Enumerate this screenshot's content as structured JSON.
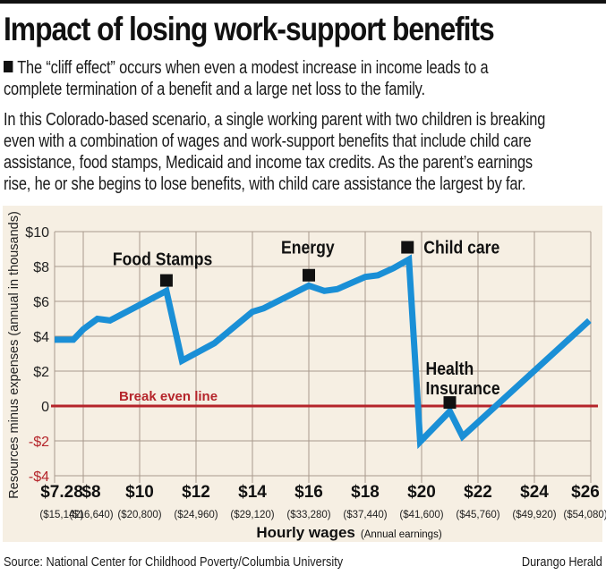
{
  "header": {
    "title": "Impact of losing work-support benefits",
    "intro": "The “cliff effect” occurs when even a modest increase in income leads to a",
    "intro2": "complete termination of a benefit and a large net loss to the family.",
    "body_lines": [
      "In this Colorado-based scenario, a single working parent with two children is breaking",
      "even with a combination of wages and work-support benefits that include child care",
      "assistance, food stamps, Medicaid and income tax credits. As the parent’s earnings",
      "rise, he or  she begins to lose benefits, with child care assistance the largest by far."
    ]
  },
  "footer": {
    "source": "Source: National Center for Childhood Poverty/Columbia University",
    "credit": "Durango Herald"
  },
  "chart_data": {
    "type": "line",
    "title": "Impact of losing work-support benefits",
    "xlabel": "Hourly wages",
    "xlabel_sub": "(Annual earnings)",
    "ylabel": "Resources minus expenses (annual in thousands)",
    "xlim": [
      7.28,
      26
    ],
    "ylim": [
      -4,
      10
    ],
    "grid": true,
    "x_ticks": [
      {
        "value": 7.28,
        "label": "$7.28",
        "sub": "($15,142)"
      },
      {
        "value": 8,
        "label": "$8",
        "sub": "($16,640)"
      },
      {
        "value": 10,
        "label": "$10",
        "sub": "($20,800)"
      },
      {
        "value": 12,
        "label": "$12",
        "sub": "($24,960)"
      },
      {
        "value": 14,
        "label": "$14",
        "sub": "($29,120)"
      },
      {
        "value": 16,
        "label": "$16",
        "sub": "($33,280)"
      },
      {
        "value": 18,
        "label": "$18",
        "sub": "($37,440)"
      },
      {
        "value": 20,
        "label": "$20",
        "sub": "($41,600)"
      },
      {
        "value": 22,
        "label": "$22",
        "sub": "($45,760)"
      },
      {
        "value": 24,
        "label": "$24",
        "sub": "($49,920)"
      },
      {
        "value": 26,
        "label": "$26",
        "sub": "($54,080)"
      }
    ],
    "y_ticks": [
      {
        "value": 10,
        "label": "$10",
        "negative": false
      },
      {
        "value": 8,
        "label": "$8",
        "negative": false
      },
      {
        "value": 6,
        "label": "$6",
        "negative": false
      },
      {
        "value": 4,
        "label": "$4",
        "negative": false
      },
      {
        "value": 2,
        "label": "$2",
        "negative": false
      },
      {
        "value": 0,
        "label": "0",
        "negative": false
      },
      {
        "value": -2,
        "label": "-$2",
        "negative": true
      },
      {
        "value": -4,
        "label": "-$4",
        "negative": true
      }
    ],
    "series": [
      {
        "name": "Resources minus expenses",
        "color": "#1a8fd6",
        "x": [
          7.28,
          7.75,
          8.0,
          8.5,
          8.95,
          10.95,
          11.5,
          12.65,
          14.0,
          14.4,
          16.0,
          16.55,
          17.0,
          18.0,
          18.45,
          19.0,
          19.55,
          19.95,
          21.0,
          21.45,
          25.95
        ],
        "y": [
          3.8,
          3.8,
          4.4,
          5.0,
          4.9,
          6.6,
          2.6,
          3.6,
          5.4,
          5.6,
          6.9,
          6.6,
          6.7,
          7.4,
          7.5,
          7.9,
          8.4,
          -2.05,
          -0.3,
          -1.75,
          4.9
        ]
      }
    ],
    "reference_line": {
      "y": 0,
      "label": "Break even line",
      "color": "#b5252b"
    },
    "annotations": [
      {
        "label": "Food Stamps",
        "x": 10.95,
        "y": 7.2
      },
      {
        "label": "Energy",
        "x": 16.0,
        "y": 7.5
      },
      {
        "label": "Child care",
        "x": 19.5,
        "y": 9.1
      },
      {
        "label": "Health Insurance",
        "x": 21.0,
        "y": 0.2
      }
    ],
    "colors": {
      "panel": "#f6efe3",
      "grid": "#a89a8c",
      "line": "#1a8fd6",
      "break_even": "#b5252b",
      "negative_tick": "#b5252b"
    }
  }
}
